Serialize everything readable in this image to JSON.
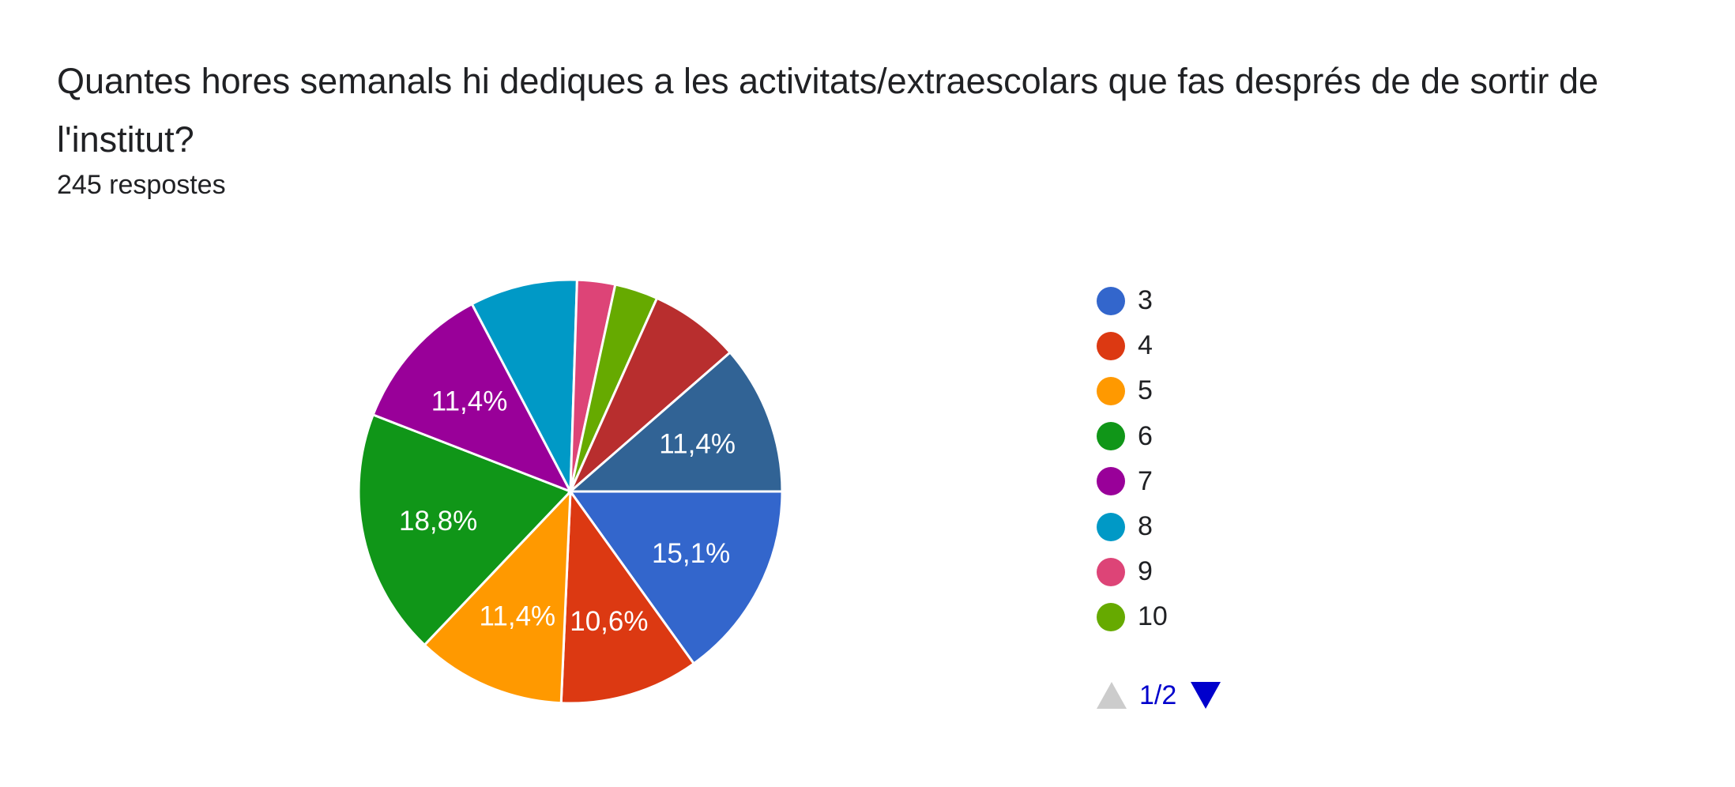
{
  "title": "Quantes hores semanals hi dediques a les activitats/extraescolars que fas després de de sortir de l'institut?",
  "subtitle": "245 respostes",
  "pager": {
    "text": "1/2",
    "up_icon": "triangle-up-icon",
    "down_icon": "triangle-down-icon"
  },
  "chart_data": {
    "type": "pie",
    "title": "Quantes hores semanals hi dediques a les activitats/extraescolars que fas després de de sortir de l'institut?",
    "slices": [
      {
        "name": "3",
        "percent": 15.1,
        "label": "15,1%",
        "color": "#3366cc"
      },
      {
        "name": "4",
        "percent": 10.6,
        "label": "10,6%",
        "color": "#dc3912"
      },
      {
        "name": "5",
        "percent": 11.4,
        "label": "11,4%",
        "color": "#ff9900"
      },
      {
        "name": "6",
        "percent": 18.8,
        "label": "18,8%",
        "color": "#109618"
      },
      {
        "name": "7",
        "percent": 11.4,
        "label": "11,4%",
        "color": "#990099"
      },
      {
        "name": "8",
        "percent": 8.2,
        "label": "",
        "color": "#0099c6"
      },
      {
        "name": "9",
        "percent": 2.9,
        "label": "",
        "color": "#dd4477"
      },
      {
        "name": "10",
        "percent": 3.3,
        "label": "",
        "color": "#66aa00"
      },
      {
        "name": "",
        "percent": 6.9,
        "label": "",
        "color": "#b82e2e"
      },
      {
        "name": "",
        "percent": 11.4,
        "label": "11,4%",
        "color": "#316395"
      }
    ],
    "legend": {
      "placement": "right",
      "visible_entries": [
        "3",
        "4",
        "5",
        "6",
        "7",
        "8",
        "9",
        "10"
      ]
    }
  }
}
